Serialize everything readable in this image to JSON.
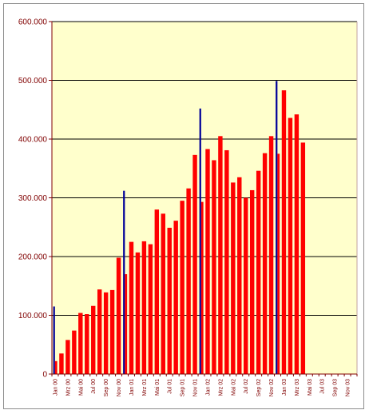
{
  "chart_data": {
    "type": "bar",
    "title": "",
    "xlabel": "",
    "ylabel": "",
    "ylim": [
      0,
      600000
    ],
    "yticks": [
      0,
      100000,
      200000,
      300000,
      400000,
      500000,
      600000
    ],
    "ytick_labels": [
      "0",
      "100.000",
      "200.000",
      "300.000",
      "400.000",
      "500.000",
      "600.000"
    ],
    "grid": true,
    "legend": "none",
    "x_tick_labels": [
      "Jan 00",
      "Mrz 00",
      "Mai 00",
      "Jul 00",
      "Sep 00",
      "Nov 00",
      "Jan 01",
      "Mrz 01",
      "Mai 01",
      "Jul 01",
      "Sep 01",
      "Nov 01",
      "Jan 02",
      "Mrz 02",
      "Mai 02",
      "Jul 02",
      "Sep 02",
      "Nov 02",
      "Jan 03",
      "Mrz 03",
      "Mai 03",
      "Jul 03",
      "Sep 03",
      "Nov 03"
    ],
    "months": [
      "Jan 00",
      "Feb 00",
      "Mrz 00",
      "Apr 00",
      "Mai 00",
      "Jun 00",
      "Jul 00",
      "Aug 00",
      "Sep 00",
      "Okt 00",
      "Nov 00",
      "Dez 00",
      "Jan 01",
      "Feb 01",
      "Mrz 01",
      "Apr 01",
      "Mai 01",
      "Jun 01",
      "Jul 01",
      "Aug 01",
      "Sep 01",
      "Okt 01",
      "Nov 01",
      "Dez 01",
      "Jan 02",
      "Feb 02",
      "Mrz 02",
      "Apr 02",
      "Mai 02",
      "Jun 02",
      "Jul 02",
      "Aug 02",
      "Sep 02",
      "Okt 02",
      "Nov 02",
      "Dez 02",
      "Jan 03",
      "Feb 03",
      "Mrz 03",
      "Apr 03",
      "Mai 03",
      "Jun 03",
      "Jul 03",
      "Aug 03",
      "Sep 03",
      "Okt 03",
      "Nov 03",
      "Dez 03"
    ],
    "series": [
      {
        "color": "#ff0000",
        "values": [
          22000,
          35000,
          58000,
          74000,
          104000,
          102000,
          116000,
          144000,
          139000,
          143000,
          198000,
          170000,
          225000,
          207000,
          226000,
          221000,
          280000,
          273000,
          249000,
          261000,
          295000,
          316000,
          373000,
          293000,
          383000,
          364000,
          405000,
          381000,
          326000,
          335000,
          300000,
          313000,
          346000,
          376000,
          405000,
          375000,
          483000,
          436000,
          442000,
          394000,
          null,
          null,
          null,
          null,
          null,
          null,
          null,
          null
        ]
      },
      {
        "color": "#000099",
        "values": [
          115000,
          null,
          null,
          null,
          null,
          null,
          null,
          null,
          null,
          null,
          null,
          312000,
          null,
          null,
          null,
          null,
          null,
          null,
          null,
          null,
          null,
          null,
          null,
          452000,
          null,
          null,
          null,
          null,
          null,
          null,
          null,
          null,
          null,
          null,
          null,
          499000,
          null,
          null,
          null,
          null,
          null,
          null,
          null,
          null,
          null,
          null,
          null,
          null
        ]
      }
    ]
  },
  "colors": {
    "plot_background": "#ffffcc",
    "axis": "#800000",
    "grid": "#000000"
  }
}
